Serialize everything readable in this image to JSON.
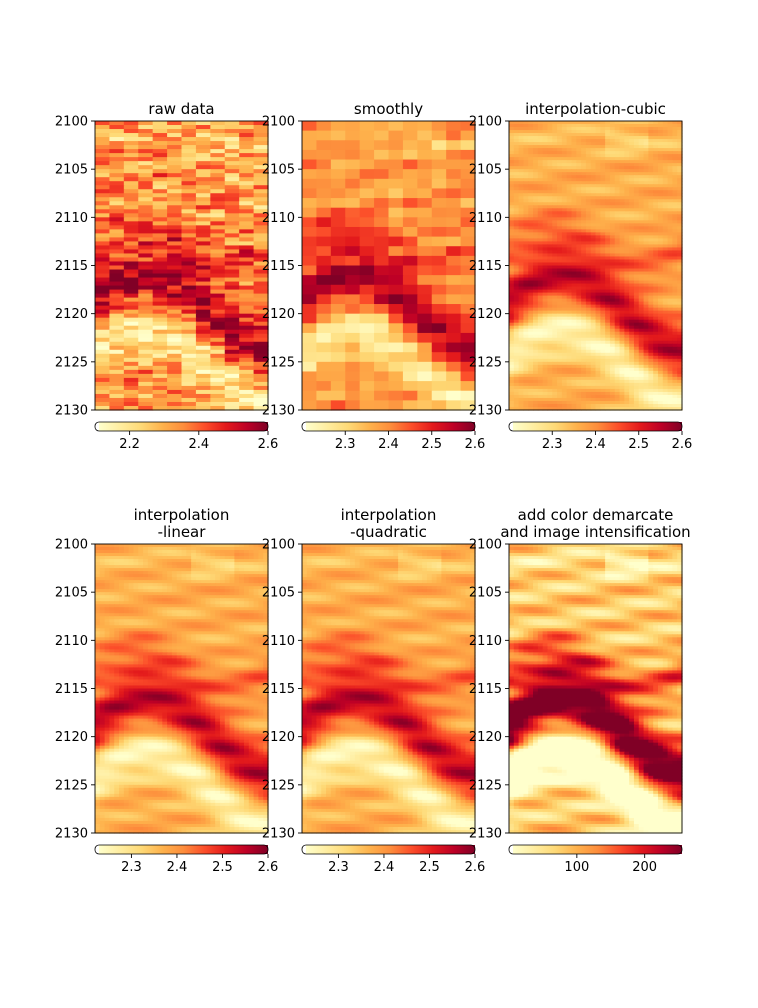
{
  "figure": {
    "background": "#ffffff"
  },
  "colormap": {
    "name": "YlOrRd",
    "stops": [
      "#ffffcc",
      "#ffeda0",
      "#fed976",
      "#feb24c",
      "#fd8d3c",
      "#fc4e2a",
      "#e31a1c",
      "#bd0026",
      "#800026"
    ]
  },
  "chart_data": [
    {
      "type": "heatmap",
      "title": "raw data",
      "render": "raw",
      "ylim": [
        2100,
        2130
      ],
      "yticks": [
        2100,
        2105,
        2110,
        2115,
        2120,
        2125,
        2130
      ],
      "ytick_labels": [
        "2100",
        "2105",
        "2110",
        "2115",
        "2120",
        "2125",
        "2130"
      ],
      "colorbar": {
        "range": [
          2.1,
          2.6
        ],
        "ticks": [
          2.2,
          2.4,
          2.6
        ],
        "tick_labels": [
          "2.2",
          "2.4",
          "2.6"
        ]
      }
    },
    {
      "type": "heatmap",
      "title": "smoothly",
      "render": "smooth",
      "ylim": [
        2100,
        2130
      ],
      "yticks": [
        2100,
        2105,
        2110,
        2115,
        2120,
        2125,
        2130
      ],
      "ytick_labels": [
        "2100",
        "2105",
        "2110",
        "2115",
        "2120",
        "2125",
        "2130"
      ],
      "colorbar": {
        "range": [
          2.2,
          2.6
        ],
        "ticks": [
          2.3,
          2.4,
          2.5,
          2.6
        ],
        "tick_labels": [
          "2.3",
          "2.4",
          "2.5",
          "2.6"
        ]
      }
    },
    {
      "type": "heatmap",
      "title": "interpolation-cubic",
      "render": "interp",
      "ylim": [
        2100,
        2130
      ],
      "yticks": [
        2100,
        2105,
        2110,
        2115,
        2120,
        2125,
        2130
      ],
      "ytick_labels": [
        "2100",
        "2105",
        "2110",
        "2115",
        "2120",
        "2125",
        "2130"
      ],
      "colorbar": {
        "range": [
          2.2,
          2.6
        ],
        "ticks": [
          2.3,
          2.4,
          2.5,
          2.6
        ],
        "tick_labels": [
          "2.3",
          "2.4",
          "2.5",
          "2.6"
        ]
      }
    },
    {
      "type": "heatmap",
      "title": "interpolation\n-linear",
      "render": "interp",
      "ylim": [
        2100,
        2130
      ],
      "yticks": [
        2100,
        2105,
        2110,
        2115,
        2120,
        2125,
        2130
      ],
      "ytick_labels": [
        "2100",
        "2105",
        "2110",
        "2115",
        "2120",
        "2125",
        "2130"
      ],
      "colorbar": {
        "range": [
          2.22,
          2.6
        ],
        "ticks": [
          2.3,
          2.4,
          2.5,
          2.6
        ],
        "tick_labels": [
          "2.3",
          "2.4",
          "2.5",
          "2.6"
        ]
      }
    },
    {
      "type": "heatmap",
      "title": "interpolation\n-quadratic",
      "render": "interp",
      "ylim": [
        2100,
        2130
      ],
      "yticks": [
        2100,
        2105,
        2110,
        2115,
        2120,
        2125,
        2130
      ],
      "ytick_labels": [
        "2100",
        "2105",
        "2110",
        "2115",
        "2120",
        "2125",
        "2130"
      ],
      "colorbar": {
        "range": [
          2.22,
          2.6
        ],
        "ticks": [
          2.3,
          2.4,
          2.5,
          2.6
        ],
        "tick_labels": [
          "2.3",
          "2.4",
          "2.5",
          "2.6"
        ]
      }
    },
    {
      "type": "heatmap",
      "title": "add color demarcate\nand image intensification",
      "render": "enhanced",
      "ylim": [
        2100,
        2130
      ],
      "yticks": [
        2100,
        2105,
        2110,
        2115,
        2120,
        2125,
        2130
      ],
      "ytick_labels": [
        "2100",
        "2105",
        "2110",
        "2115",
        "2120",
        "2125",
        "2130"
      ],
      "colorbar": {
        "range": [
          0,
          255
        ],
        "ticks": [
          100,
          200
        ],
        "tick_labels": [
          "100",
          "200"
        ]
      }
    }
  ]
}
